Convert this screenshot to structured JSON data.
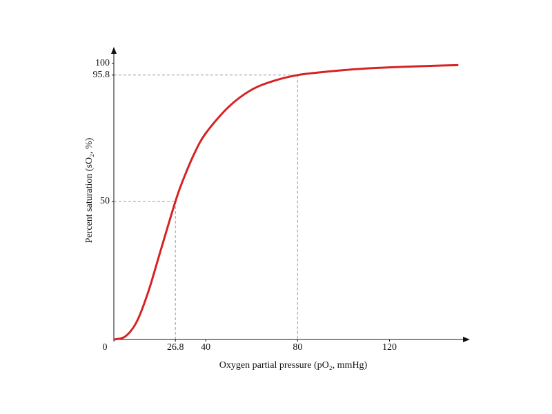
{
  "chart_data": {
    "type": "line",
    "x_label": "Oxygen partial pressure (pO₂, mmHg)",
    "y_label": "Percent saturation (sO₂, %)",
    "series": [
      {
        "color": "#d62222",
        "x": [
          0,
          5,
          10,
          15,
          20,
          26.8,
          30,
          35,
          40,
          50,
          60,
          70,
          80,
          90,
          100,
          110,
          120,
          130,
          140,
          150
        ],
        "values": [
          0,
          1.1,
          6.5,
          17.3,
          31.2,
          50,
          57.5,
          67.3,
          74.7,
          84.3,
          90.5,
          93.8,
          95.8,
          96.8,
          97.6,
          98.2,
          98.6,
          98.9,
          99.2,
          99.4
        ]
      }
    ],
    "reference_points": [
      {
        "x": 26.8,
        "y": 50
      },
      {
        "x": 80,
        "y": 95.8
      }
    ],
    "xlim": [
      0,
      155
    ],
    "ylim": [
      0,
      106
    ],
    "xticks": [
      0,
      26.8,
      40,
      80,
      120
    ],
    "yticks": [
      50,
      95.8,
      100
    ]
  }
}
